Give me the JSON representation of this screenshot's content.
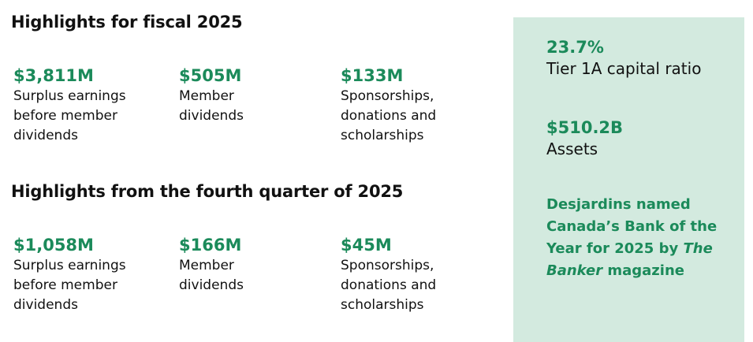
{
  "sections": [
    {
      "title": "Highlights for fiscal 2025",
      "items": [
        {
          "value": "$3,811M",
          "label_lines": [
            "Surplus earnings",
            "before member",
            "dividends"
          ]
        },
        {
          "value": "$505M",
          "label_lines": [
            "Member",
            "dividends"
          ]
        },
        {
          "value": "$133M",
          "label_lines": [
            "Sponsorships,",
            "donations and",
            "scholarships"
          ]
        }
      ]
    },
    {
      "title": "Highlights from the fourth quarter of 2025",
      "items": [
        {
          "value": "$1,058M",
          "label_lines": [
            "Surplus earnings",
            "before member",
            "dividends"
          ]
        },
        {
          "value": "$166M",
          "label_lines": [
            "Member",
            "dividends"
          ]
        },
        {
          "value": "$45M",
          "label_lines": [
            "Sponsorships,",
            "donations and",
            "scholarships"
          ]
        }
      ]
    }
  ],
  "sidebar": {
    "stats": [
      {
        "value": "23.7%",
        "label": "Tier 1A capital ratio"
      },
      {
        "value": "$510.2B",
        "label": "Assets"
      }
    ],
    "statement": {
      "before": "Desjardins named Canada’s Bank of the Year for 2025 by ",
      "italic": "The Banker",
      "after": " magazine"
    }
  }
}
